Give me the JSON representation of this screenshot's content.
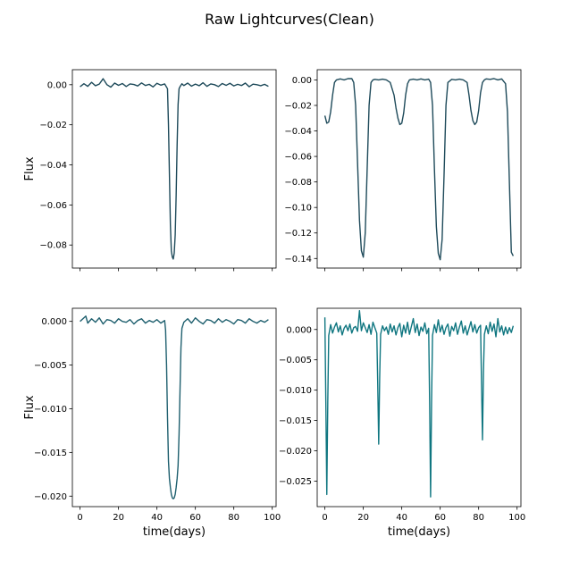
{
  "figure": {
    "title": "Raw Lightcurves(Clean)"
  },
  "chart_data": [
    {
      "type": "line",
      "panel": "top-left",
      "title": "",
      "xlabel": "",
      "ylabel": "Flux",
      "xlim": [
        -4,
        102
      ],
      "ylim": [
        -0.0915,
        0.0075
      ],
      "xticks": [
        0,
        20,
        40,
        60,
        80,
        100
      ],
      "show_x_tick_labels": false,
      "yticks": [
        0.0,
        -0.02,
        -0.04,
        -0.06,
        -0.08
      ],
      "ytick_labels": [
        "0.00",
        "−0.02",
        "−0.04",
        "−0.06",
        "−0.08"
      ],
      "color": "#1e4a5a",
      "x": [
        0,
        2,
        4,
        6,
        8,
        10,
        12,
        14,
        16,
        18,
        20,
        22,
        24,
        26,
        28,
        30,
        32,
        34,
        36,
        38,
        40,
        42,
        44,
        45.5,
        46,
        46.5,
        47,
        47.5,
        48,
        48.5,
        49,
        49.5,
        50,
        50.5,
        51,
        51.5,
        52,
        53,
        54,
        56,
        58,
        60,
        62,
        64,
        66,
        68,
        70,
        72,
        74,
        76,
        78,
        80,
        82,
        84,
        86,
        88,
        90,
        92,
        94,
        96,
        98
      ],
      "y": [
        -0.001,
        0.0005,
        -0.0008,
        0.0012,
        -0.0005,
        0.0003,
        0.003,
        0.0,
        -0.0012,
        0.0008,
        -0.0003,
        0.0006,
        -0.0009,
        0.0004,
        0.0001,
        -0.0006,
        0.0009,
        -0.0004,
        0.0002,
        -0.0011,
        0.0007,
        -0.0002,
        0.0004,
        -0.002,
        -0.02,
        -0.045,
        -0.07,
        -0.083,
        -0.086,
        -0.087,
        -0.084,
        -0.075,
        -0.055,
        -0.03,
        -0.01,
        -0.002,
        -0.001,
        0.0005,
        -0.0004,
        0.0008,
        -0.0007,
        0.0003,
        -0.0005,
        0.001,
        -0.0008,
        0.0004,
        0.0,
        -0.0009,
        0.0006,
        -0.0003,
        0.0007,
        -0.0006,
        0.0002,
        -0.0004,
        0.0008,
        -0.001,
        0.0003,
        0.0,
        -0.0005,
        0.0002,
        -0.0008
      ]
    },
    {
      "type": "line",
      "panel": "top-right",
      "title": "",
      "xlabel": "",
      "ylabel": "",
      "xlim": [
        -4,
        102
      ],
      "ylim": [
        -0.1475,
        0.008
      ],
      "xticks": [
        0,
        20,
        40,
        60,
        80,
        100
      ],
      "show_x_tick_labels": false,
      "yticks": [
        0.0,
        -0.02,
        -0.04,
        -0.06,
        -0.08,
        -0.1,
        -0.12,
        -0.14
      ],
      "ytick_labels": [
        "0.00",
        "−0.02",
        "−0.04",
        "−0.06",
        "−0.08",
        "−0.10",
        "−0.12",
        "−0.14"
      ],
      "color": "#1e4a5a",
      "x": [
        0,
        1,
        2,
        3,
        4,
        5,
        6,
        8,
        10,
        12,
        14,
        15,
        16,
        17,
        18,
        19,
        20,
        21,
        22,
        23,
        24,
        25,
        26,
        28,
        30,
        32,
        34,
        36,
        37,
        38,
        39,
        40,
        41,
        42,
        43,
        44,
        46,
        48,
        50,
        52,
        54,
        55,
        56,
        57,
        58,
        59,
        60,
        61,
        62,
        63,
        64,
        66,
        68,
        70,
        72,
        74,
        75,
        76,
        77,
        78,
        79,
        80,
        81,
        82,
        83,
        84,
        86,
        88,
        90,
        92,
        94,
        95,
        96,
        97,
        98
      ],
      "y": [
        -0.028,
        -0.034,
        -0.033,
        -0.025,
        -0.012,
        -0.002,
        0.0,
        0.0008,
        0.0,
        0.001,
        0.001,
        -0.002,
        -0.02,
        -0.065,
        -0.11,
        -0.134,
        -0.139,
        -0.12,
        -0.07,
        -0.02,
        -0.002,
        0.0,
        0.0004,
        0.0,
        0.0006,
        0.0,
        -0.002,
        -0.012,
        -0.022,
        -0.03,
        -0.035,
        -0.034,
        -0.026,
        -0.012,
        -0.003,
        0.0,
        0.0006,
        0.0,
        0.0008,
        0.0,
        0.0006,
        -0.002,
        -0.02,
        -0.07,
        -0.115,
        -0.136,
        -0.141,
        -0.125,
        -0.075,
        -0.02,
        -0.002,
        0.0004,
        0.0,
        0.0006,
        0.0,
        -0.002,
        -0.012,
        -0.024,
        -0.032,
        -0.035,
        -0.033,
        -0.024,
        -0.01,
        -0.002,
        0.0,
        0.0008,
        0.0004,
        0.001,
        0.0,
        0.0008,
        -0.003,
        -0.025,
        -0.08,
        -0.135,
        -0.138
      ]
    },
    {
      "type": "line",
      "panel": "bottom-left",
      "title": "",
      "xlabel": "time(days)",
      "ylabel": "Flux",
      "xlim": [
        -4,
        102
      ],
      "ylim": [
        -0.0212,
        0.0015
      ],
      "xticks": [
        0,
        20,
        40,
        60,
        80,
        100
      ],
      "show_x_tick_labels": true,
      "xtick_labels": [
        "0",
        "20",
        "40",
        "60",
        "80",
        "100"
      ],
      "yticks": [
        0.0,
        -0.005,
        -0.01,
        -0.015,
        -0.02
      ],
      "ytick_labels": [
        "0.000",
        "−0.005",
        "−0.010",
        "−0.015",
        "−0.020"
      ],
      "color": "#1e5f6e",
      "x": [
        0,
        2,
        3,
        4,
        6,
        8,
        10,
        12,
        14,
        16,
        18,
        20,
        22,
        24,
        26,
        28,
        30,
        32,
        34,
        36,
        38,
        40,
        42,
        44,
        44.5,
        45,
        45.5,
        46,
        46.5,
        47,
        47.5,
        48,
        48.5,
        49,
        49.5,
        50,
        50.5,
        51,
        51.5,
        52,
        52.5,
        53,
        54,
        56,
        58,
        60,
        62,
        64,
        66,
        68,
        70,
        72,
        74,
        76,
        78,
        80,
        82,
        84,
        86,
        88,
        90,
        92,
        94,
        96,
        98
      ],
      "y": [
        0.0,
        0.0004,
        0.0006,
        -0.0002,
        0.0003,
        -0.0001,
        0.0004,
        -0.0003,
        0.0002,
        0.0001,
        -0.0002,
        0.0003,
        0.0,
        -0.0001,
        0.0002,
        -0.0003,
        0.0001,
        0.0003,
        -0.0002,
        0.0001,
        -0.0001,
        0.0002,
        -0.0002,
        0.0001,
        -0.001,
        -0.005,
        -0.011,
        -0.016,
        -0.018,
        -0.019,
        -0.0198,
        -0.0202,
        -0.0203,
        -0.0202,
        -0.0198,
        -0.019,
        -0.018,
        -0.0165,
        -0.013,
        -0.008,
        -0.003,
        -0.0008,
        -0.0001,
        0.0003,
        -0.0002,
        0.0004,
        0.0,
        -0.0003,
        0.0002,
        0.0001,
        -0.0002,
        0.0003,
        -0.0001,
        0.0002,
        0.0,
        -0.0003,
        0.0002,
        0.0001,
        -0.0002,
        0.0003,
        0.0,
        -0.0002,
        0.0001,
        -0.0001,
        0.0002
      ]
    },
    {
      "type": "line",
      "panel": "bottom-right",
      "title": "",
      "xlabel": "time(days)",
      "ylabel": "",
      "xlim": [
        -4,
        102
      ],
      "ylim": [
        -0.0292,
        0.0035
      ],
      "xticks": [
        0,
        20,
        40,
        60,
        80,
        100
      ],
      "show_x_tick_labels": true,
      "xtick_labels": [
        "0",
        "20",
        "40",
        "60",
        "80",
        "100"
      ],
      "yticks": [
        0.0,
        -0.005,
        -0.01,
        -0.015,
        -0.02,
        -0.025
      ],
      "ytick_labels": [
        "0.000",
        "−0.005",
        "−0.010",
        "−0.015",
        "−0.020",
        "−0.025"
      ],
      "color": "#0f7680",
      "x": [
        0,
        0.5,
        1,
        1.5,
        2,
        3,
        4,
        5,
        6,
        7,
        8,
        9,
        10,
        11,
        12,
        13,
        14,
        15,
        16,
        17,
        18,
        19,
        20,
        21,
        22,
        23,
        24,
        25,
        26,
        27,
        27.5,
        28,
        28.5,
        29,
        30,
        31,
        32,
        33,
        34,
        35,
        36,
        37,
        38,
        39,
        40,
        41,
        42,
        43,
        44,
        45,
        46,
        47,
        48,
        49,
        50,
        51,
        52,
        53,
        54,
        54.5,
        55,
        55.5,
        56,
        57,
        58,
        59,
        60,
        61,
        62,
        63,
        64,
        65,
        66,
        67,
        68,
        69,
        70,
        71,
        72,
        73,
        74,
        75,
        76,
        77,
        78,
        79,
        80,
        81,
        81.5,
        82,
        82.5,
        83,
        84,
        85,
        86,
        87,
        88,
        89,
        90,
        91,
        92,
        93,
        94,
        95,
        96,
        97,
        98
      ],
      "y": [
        0.002,
        -0.012,
        -0.0272,
        -0.012,
        -0.001,
        0.0008,
        -0.0006,
        0.0004,
        0.0011,
        -0.0004,
        0.0006,
        -0.0009,
        0.0002,
        0.0007,
        -0.0002,
        0.0009,
        -0.0006,
        0.0003,
        0.0005,
        -0.0003,
        0.0031,
        -0.0002,
        0.0011,
        0.0003,
        -0.0005,
        0.0008,
        -0.0008,
        0.0012,
        0.0003,
        -0.0006,
        -0.009,
        -0.0189,
        -0.008,
        -0.0008,
        0.0006,
        -0.0002,
        0.0004,
        -0.0008,
        0.0009,
        -0.0004,
        0.0006,
        -0.0009,
        0.0003,
        0.001,
        -0.0012,
        0.0007,
        -0.0006,
        0.0012,
        -0.0008,
        0.0005,
        0.0018,
        -0.0005,
        0.0009,
        -0.001,
        0.0004,
        -0.0003,
        0.0011,
        -0.0007,
        0.0002,
        -0.012,
        -0.0276,
        -0.012,
        -0.001,
        0.0008,
        -0.0005,
        0.0016,
        -0.0004,
        0.0007,
        -0.0008,
        0.0003,
        0.0009,
        -0.0011,
        0.0005,
        -0.0002,
        0.0011,
        -0.0008,
        0.0004,
        0.0014,
        -0.0006,
        0.0006,
        -0.0009,
        0.0002,
        0.0013,
        -0.0004,
        0.0008,
        -0.0006,
        0.0003,
        0.0007,
        -0.009,
        -0.0182,
        -0.007,
        -0.0008,
        0.0006,
        -0.0007,
        0.0012,
        -0.0003,
        0.0009,
        -0.0012,
        0.0018,
        -0.0004,
        0.0006,
        -0.0009,
        0.0004,
        -0.0007,
        0.0003,
        -0.0005,
        0.0006
      ]
    }
  ]
}
